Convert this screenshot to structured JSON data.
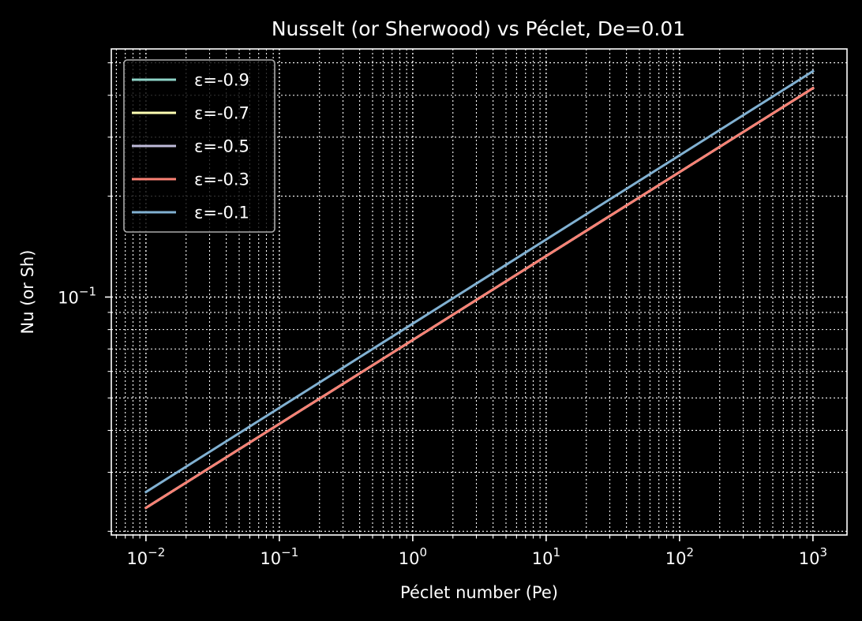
{
  "chart_data": {
    "type": "line",
    "title": "Nusselt (or Sherwood) vs Péclet, De=0.01",
    "xlabel": "Péclet number (Pe)",
    "ylabel": "Nu (or Sh)",
    "xscale": "log",
    "yscale": "log",
    "xlim": [
      0.0055,
      1800
    ],
    "ylim": [
      0.0195,
      0.55
    ],
    "grid": "both (major and minor, dotted)",
    "legend_position": "top-left",
    "x_ticks": [
      {
        "base": "10",
        "exp": "−2",
        "value": 0.01
      },
      {
        "base": "10",
        "exp": "−1",
        "value": 0.1
      },
      {
        "base": "10",
        "exp": "0",
        "value": 1
      },
      {
        "base": "10",
        "exp": "1",
        "value": 10
      },
      {
        "base": "10",
        "exp": "2",
        "value": 100
      },
      {
        "base": "10",
        "exp": "3",
        "value": 1000
      }
    ],
    "y_ticks": [
      {
        "base": "10",
        "exp": "−1",
        "value": 0.1
      }
    ],
    "series": [
      {
        "name": "ε=-0.9",
        "color": "#8dd3c7",
        "x": [
          0.01,
          1000
        ],
        "y": [
          0.0235,
          0.42
        ]
      },
      {
        "name": "ε=-0.7",
        "color": "#feffb3",
        "x": [
          0.01,
          1000
        ],
        "y": [
          0.0235,
          0.42
        ]
      },
      {
        "name": "ε=-0.5",
        "color": "#bfbbd9",
        "x": [
          0.01,
          1000
        ],
        "y": [
          0.0235,
          0.42
        ]
      },
      {
        "name": "ε=-0.3",
        "color": "#fa8174",
        "x": [
          0.01,
          1000
        ],
        "y": [
          0.0235,
          0.42
        ]
      },
      {
        "name": "ε=-0.1",
        "color": "#81b1d2",
        "x": [
          0.01,
          1000
        ],
        "y": [
          0.0262,
          0.472
        ]
      }
    ]
  }
}
